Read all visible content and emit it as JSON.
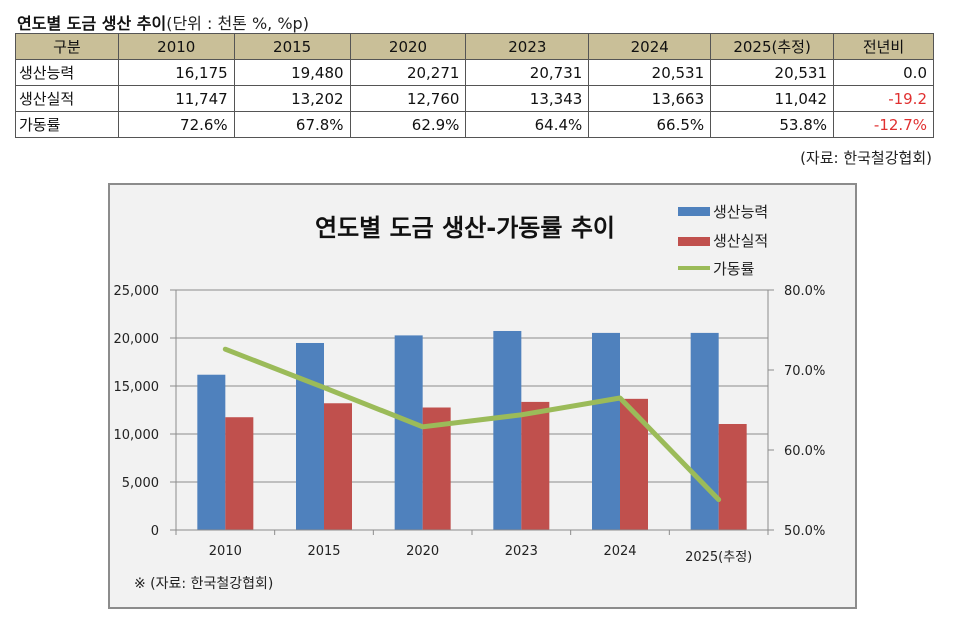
{
  "header": {
    "title": "연도별 도금 생산 추이",
    "unit": "(단위 : 천톤 %, %p)"
  },
  "table": {
    "columns": [
      "구분",
      "2010",
      "2015",
      "2020",
      "2023",
      "2024",
      "2025(추정)",
      "전년비"
    ],
    "rows": [
      {
        "label": "생산능력",
        "values": [
          "16,175",
          "19,480",
          "20,271",
          "20,731",
          "20,531",
          "20,531",
          "0.0"
        ],
        "change_negative": false
      },
      {
        "label": "생산실적",
        "values": [
          "11,747",
          "13,202",
          "12,760",
          "13,343",
          "13,663",
          "11,042",
          "-19.2"
        ],
        "change_negative": true
      },
      {
        "label": "가동률",
        "values": [
          "72.6%",
          "67.8%",
          "62.9%",
          "64.4%",
          "66.5%",
          "53.8%",
          "-12.7%"
        ],
        "change_negative": true
      }
    ],
    "source": "(자료: 한국철강협회)"
  },
  "colors": {
    "capacity": "#4f81bd",
    "output": "#c0504d",
    "rate": "#9bbb59",
    "header_bg": "#c9bf98",
    "negative": "#e03030"
  },
  "chart_data": {
    "type": "bar",
    "title": "연도별 도금 생산-가동률 추이",
    "categories": [
      "2010",
      "2015",
      "2020",
      "2023",
      "2024",
      "2025(추정)"
    ],
    "series": [
      {
        "name": "생산능력",
        "kind": "bar",
        "axis": "left",
        "color": "#4f81bd",
        "values": [
          16175,
          19480,
          20271,
          20731,
          20531,
          20531
        ]
      },
      {
        "name": "생산실적",
        "kind": "bar",
        "axis": "left",
        "color": "#c0504d",
        "values": [
          11747,
          13202,
          12760,
          13343,
          13663,
          11042
        ]
      },
      {
        "name": "가동률",
        "kind": "line",
        "axis": "right",
        "color": "#9bbb59",
        "values": [
          72.6,
          67.8,
          62.9,
          64.4,
          66.5,
          53.8
        ]
      }
    ],
    "ylim": [
      0,
      25000
    ],
    "yticks": [
      0,
      5000,
      10000,
      15000,
      20000,
      25000
    ],
    "ytick_labels": [
      "0",
      "5,000",
      "10,000",
      "15,000",
      "20,000",
      "25,000"
    ],
    "y2lim": [
      50,
      80
    ],
    "y2ticks": [
      50,
      60,
      70,
      80
    ],
    "y2tick_labels": [
      "50.0%",
      "60.0%",
      "70.0%",
      "80.0%"
    ],
    "grid": true,
    "legend_position": "top-right",
    "xlabel": "",
    "ylabel": "",
    "footnote": "※ (자료: 한국철강협회)"
  }
}
